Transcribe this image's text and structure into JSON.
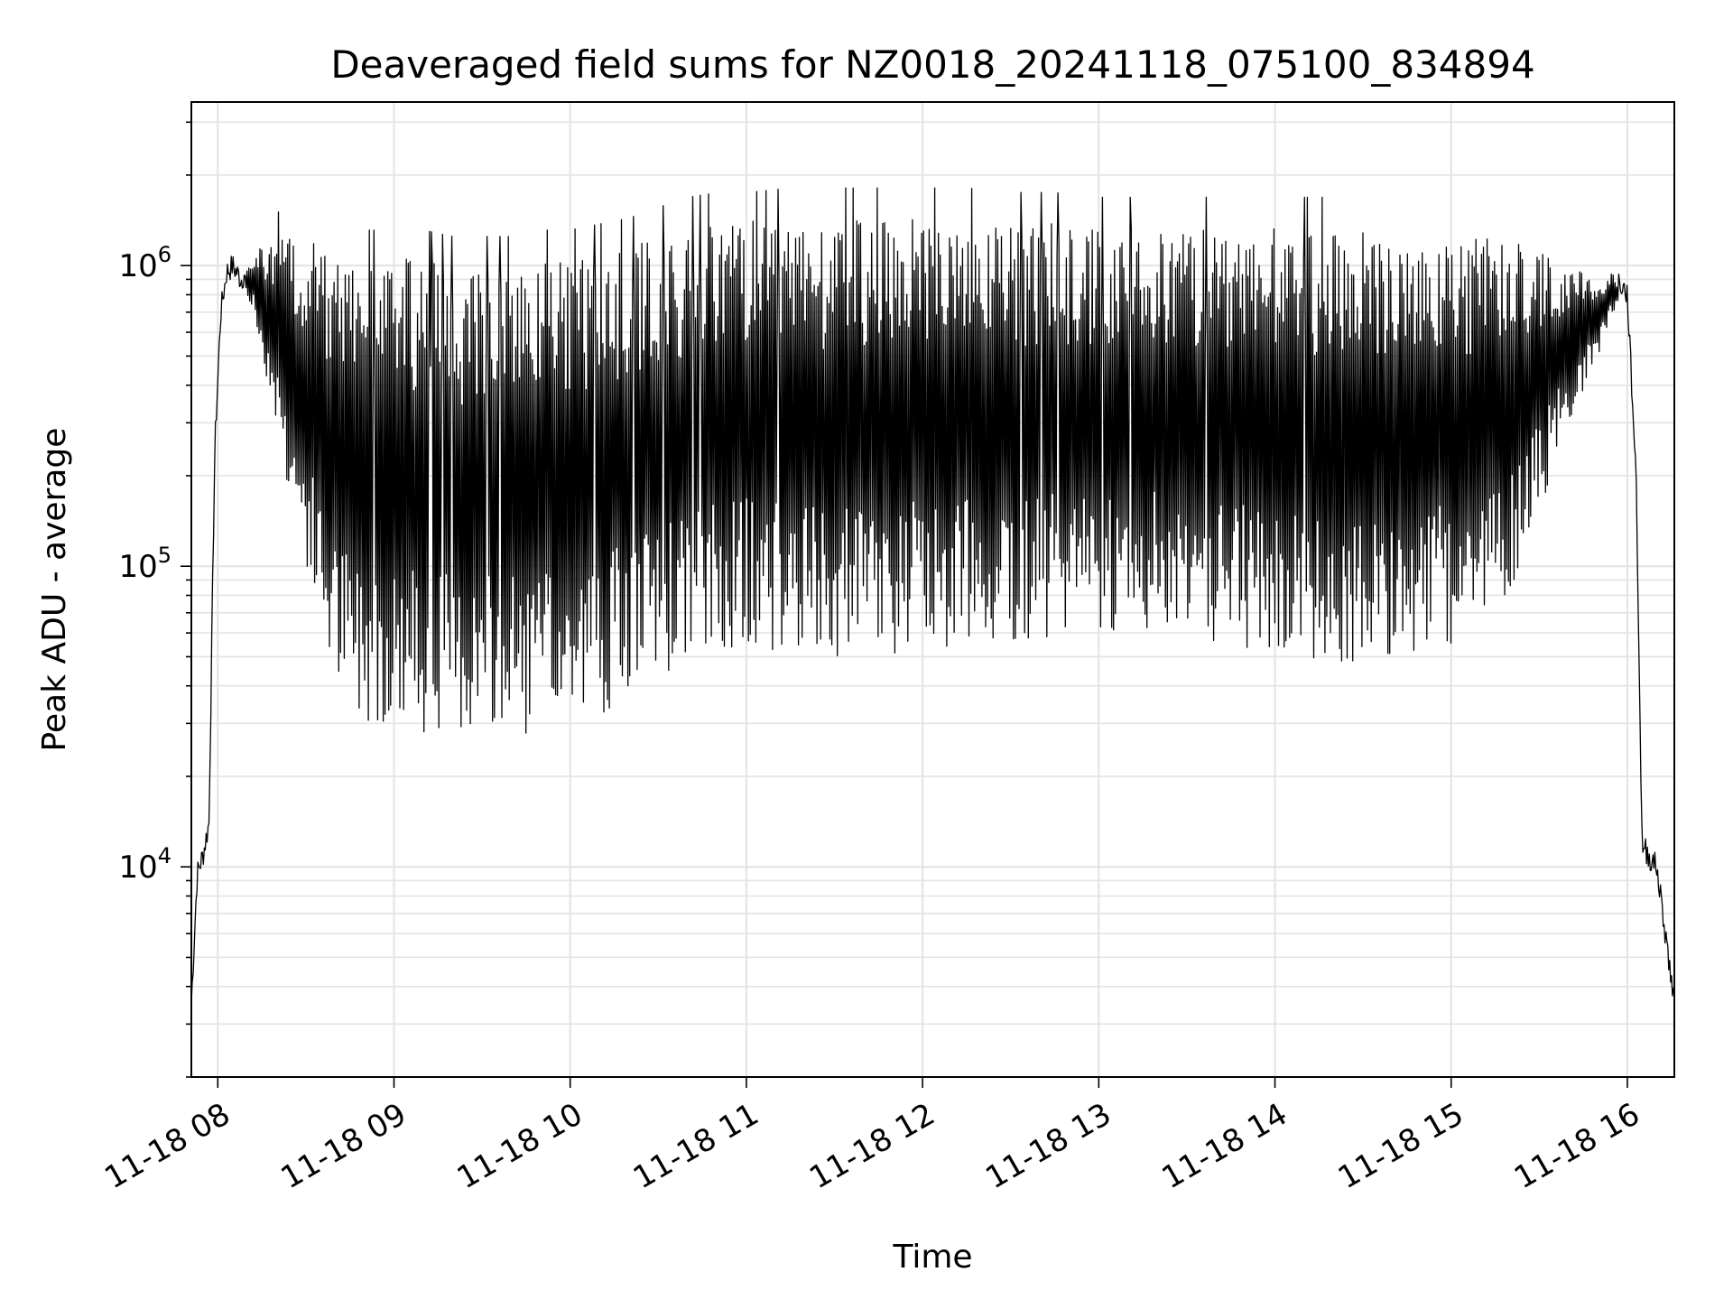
{
  "chart_data": {
    "type": "line",
    "title": "Deaveraged field sums for NZ0018_20241118_075100_834894",
    "xlabel": "Time",
    "ylabel": "Peak ADU - average",
    "yscale": "log",
    "ylim": [
      2000,
      3500000
    ],
    "xlim": [
      "2024-11-18T07:51",
      "2024-11-18T16:16"
    ],
    "x_ticks": [
      "11-18 08",
      "11-18 09",
      "11-18 10",
      "11-18 11",
      "11-18 12",
      "11-18 13",
      "11-18 14",
      "11-18 15",
      "11-18 16"
    ],
    "y_ticks": [
      {
        "base": "10",
        "exp": "4",
        "value": 10000
      },
      {
        "base": "10",
        "exp": "5",
        "value": 100000
      },
      {
        "base": "10",
        "exp": "6",
        "value": 1000000
      }
    ],
    "grid": true,
    "line_color": "#000000",
    "series": [
      {
        "x": [
          "07:51",
          "07:53",
          "07:55",
          "07:57",
          "07:59",
          "08:01",
          "08:03",
          "08:05",
          "08:08",
          "08:12",
          "08:15",
          "08:20",
          "08:25",
          "08:30",
          "08:35",
          "08:40",
          "08:45",
          "08:50",
          "08:55",
          "09:00",
          "09:10",
          "09:20",
          "09:30",
          "09:40",
          "09:50",
          "10:00",
          "10:10",
          "10:20",
          "10:30",
          "10:40",
          "10:50",
          "11:00",
          "11:15",
          "11:30",
          "11:45",
          "12:00",
          "12:15",
          "12:30",
          "12:45",
          "13:00",
          "13:15",
          "13:30",
          "13:45",
          "14:00",
          "14:15",
          "14:30",
          "14:45",
          "15:00",
          "15:10",
          "15:20",
          "15:30",
          "15:40",
          "15:50",
          "15:55",
          "16:00",
          "16:03",
          "16:05",
          "16:07",
          "16:10",
          "16:13",
          "16:16"
        ],
        "upper": [
          3500,
          9500,
          11000,
          14000,
          250000,
          700000,
          950000,
          1000000,
          900000,
          1100000,
          1150000,
          1200000,
          1250000,
          1300000,
          1150000,
          1100000,
          1050000,
          1050000,
          1050000,
          1050000,
          1050000,
          1000000,
          1000000,
          1000000,
          1050000,
          1050000,
          1100000,
          1150000,
          1250000,
          1350000,
          1400000,
          1400000,
          1450000,
          1450000,
          1450000,
          1450000,
          1450000,
          1400000,
          1400000,
          1350000,
          1350000,
          1350000,
          1350000,
          1350000,
          1350000,
          1350000,
          1300000,
          1250000,
          1250000,
          1200000,
          1150000,
          1000000,
          900000,
          950000,
          800000,
          200000,
          12000,
          11000,
          10000,
          6000,
          3500
        ],
        "lower": [
          3500,
          9500,
          11000,
          14000,
          250000,
          700000,
          950000,
          1000000,
          850000,
          700000,
          500000,
          300000,
          150000,
          100000,
          60000,
          40000,
          33000,
          31000,
          30000,
          30000,
          28000,
          28000,
          27000,
          27000,
          27000,
          28000,
          32000,
          36000,
          42000,
          48000,
          52000,
          55000,
          50000,
          47000,
          48000,
          52000,
          56000,
          57000,
          58000,
          60000,
          62000,
          58000,
          54000,
          50000,
          48000,
          48000,
          50000,
          55000,
          58000,
          80000,
          150000,
          300000,
          500000,
          700000,
          800000,
          200000,
          12000,
          11000,
          10000,
          6000,
          3500
        ]
      }
    ]
  }
}
